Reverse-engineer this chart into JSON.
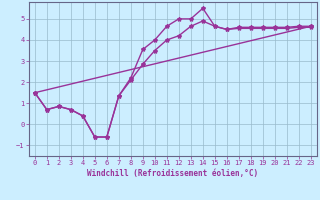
{
  "xlabel": "Windchill (Refroidissement éolien,°C)",
  "background_color": "#cceeff",
  "grid_color": "#99bbcc",
  "line_color": "#993399",
  "spine_color": "#666688",
  "xlim": [
    -0.5,
    23.5
  ],
  "ylim": [
    -1.5,
    5.8
  ],
  "xticks": [
    0,
    1,
    2,
    3,
    4,
    5,
    6,
    7,
    8,
    9,
    10,
    11,
    12,
    13,
    14,
    15,
    16,
    17,
    18,
    19,
    20,
    21,
    22,
    23
  ],
  "yticks": [
    -1,
    0,
    1,
    2,
    3,
    4,
    5
  ],
  "series1_x": [
    0,
    1,
    2,
    3,
    4,
    5,
    6,
    7,
    8,
    9,
    10,
    11,
    12,
    13,
    14,
    15,
    16,
    17,
    18,
    19,
    20,
    21,
    22,
    23
  ],
  "series1_y": [
    1.5,
    0.7,
    0.85,
    0.7,
    0.4,
    -0.6,
    -0.6,
    1.35,
    2.2,
    3.55,
    4.0,
    4.65,
    5.0,
    5.0,
    5.5,
    4.65,
    4.5,
    4.6,
    4.6,
    4.6,
    4.6,
    4.6,
    4.65,
    4.65
  ],
  "series2_x": [
    0,
    1,
    2,
    3,
    4,
    5,
    6,
    7,
    8,
    9,
    10,
    11,
    12,
    13,
    14,
    15,
    16,
    17,
    18,
    19,
    20,
    21,
    22,
    23
  ],
  "series2_y": [
    1.5,
    0.7,
    0.85,
    0.7,
    0.4,
    -0.6,
    -0.6,
    1.35,
    2.1,
    2.85,
    3.5,
    4.0,
    4.2,
    4.65,
    4.9,
    4.65,
    4.5,
    4.55,
    4.55,
    4.55,
    4.55,
    4.55,
    4.6,
    4.6
  ],
  "series3_x": [
    0,
    23
  ],
  "series3_y": [
    1.5,
    4.65
  ],
  "marker": "*",
  "markersize": 3,
  "linewidth": 1.0,
  "tick_labelsize": 5,
  "xlabel_fontsize": 5.5
}
